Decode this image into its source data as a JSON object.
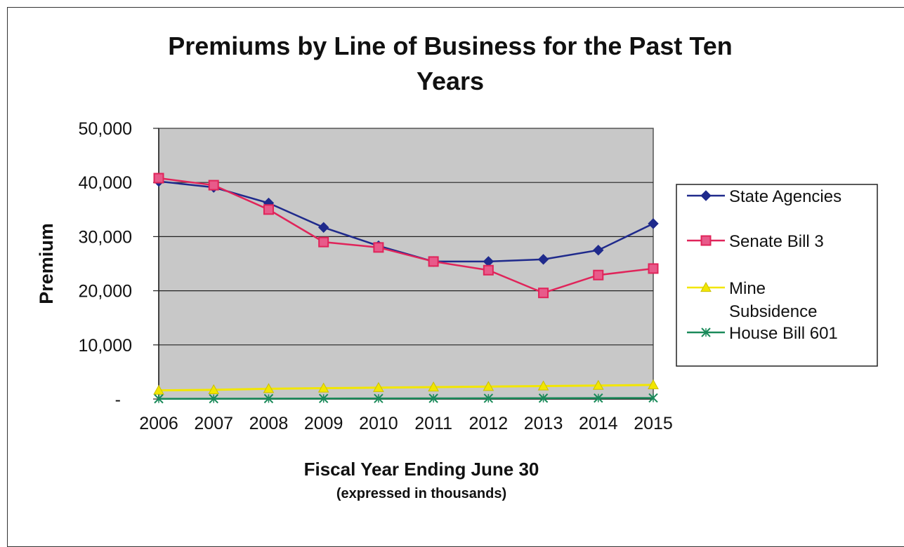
{
  "chart_data": {
    "type": "line",
    "title_lines": [
      "Premiums by Line of Business for the Past Ten",
      "Years"
    ],
    "xlabel": "Fiscal Year Ending June 30",
    "xlabel_sub": "(expressed in thousands)",
    "ylabel": "Premium",
    "ylim": [
      0,
      50000
    ],
    "y_ticks": [
      0,
      10000,
      20000,
      30000,
      40000,
      50000
    ],
    "y_tick_labels": [
      "-",
      "10,000",
      "20,000",
      "30,000",
      "40,000",
      "50,000"
    ],
    "categories": [
      "2006",
      "2007",
      "2008",
      "2009",
      "2010",
      "2011",
      "2012",
      "2013",
      "2014",
      "2015"
    ],
    "grid": "horizontal",
    "plot_background": "#c8c8c8",
    "legend_position": "right",
    "series": [
      {
        "name": "State Agencies",
        "color": "#1f2a8c",
        "marker": "diamond",
        "values": [
          40200,
          39100,
          36200,
          31700,
          28300,
          25400,
          25400,
          25800,
          27500,
          32400
        ]
      },
      {
        "name": "Senate Bill 3",
        "color": "#e0245a",
        "marker_fill": "#e85a8a",
        "marker": "square",
        "values": [
          40800,
          39500,
          35000,
          29000,
          28000,
          25400,
          23800,
          19600,
          22900,
          24100
        ]
      },
      {
        "name": "Mine Subsidence",
        "legend_lines": [
          "Mine",
          "Subsidence"
        ],
        "color": "#f2e600",
        "marker": "triangle",
        "values": [
          1600,
          1700,
          1900,
          2000,
          2100,
          2200,
          2300,
          2400,
          2500,
          2600
        ]
      },
      {
        "name": "House Bill 601",
        "color": "#1a8a5a",
        "marker": "x",
        "values": [
          50,
          60,
          80,
          100,
          110,
          130,
          140,
          160,
          180,
          200
        ]
      }
    ]
  }
}
